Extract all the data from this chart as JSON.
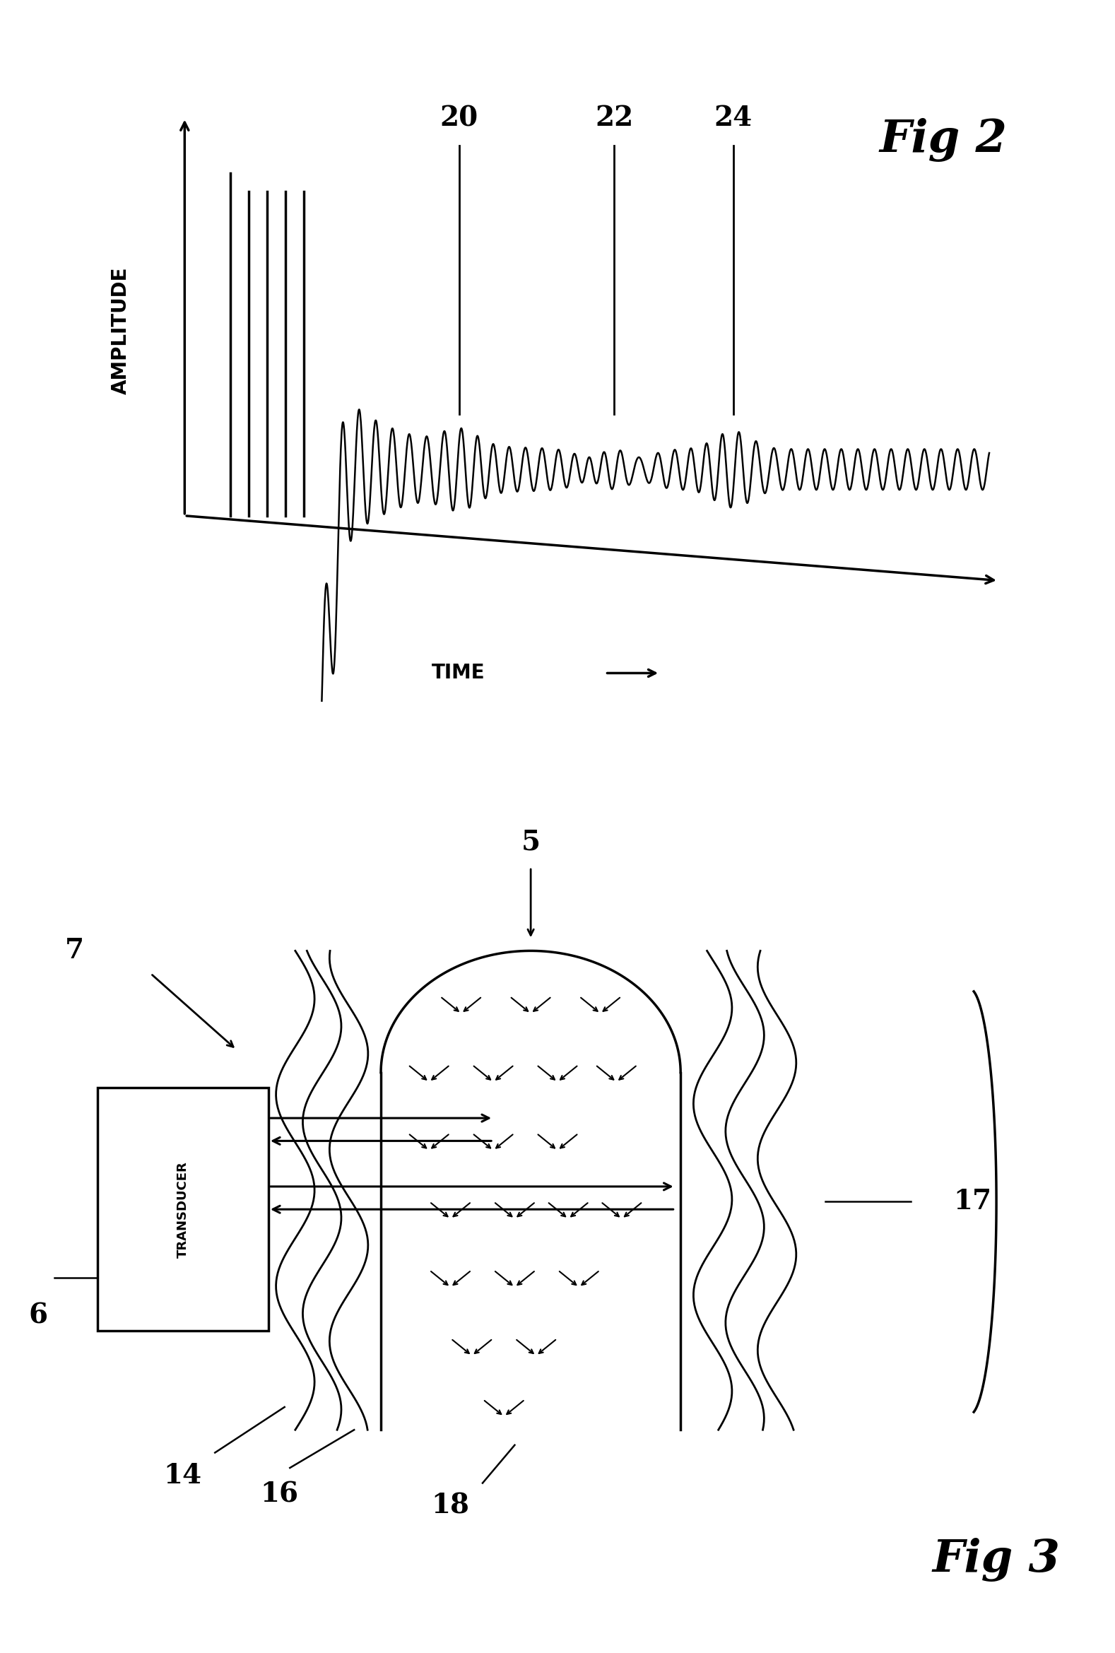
{
  "fig_title": "Fig 2",
  "fig3_title": "Fig 3",
  "background_color": "#ffffff",
  "line_color": "#000000",
  "amplitude_label": "AMPLITUDE",
  "time_label": "TIME",
  "labels_20": "20",
  "labels_22": "22",
  "labels_24": "24",
  "transducer_text": "TRANSDUCER",
  "label_5": "5",
  "label_6": "6",
  "label_7": "7",
  "label_14": "14",
  "label_16": "16",
  "label_17": "17",
  "label_18": "18",
  "fig2_fontsize": 46,
  "fig3_fontsize": 46,
  "label_fontsize": 28,
  "axis_label_fontsize": 20
}
